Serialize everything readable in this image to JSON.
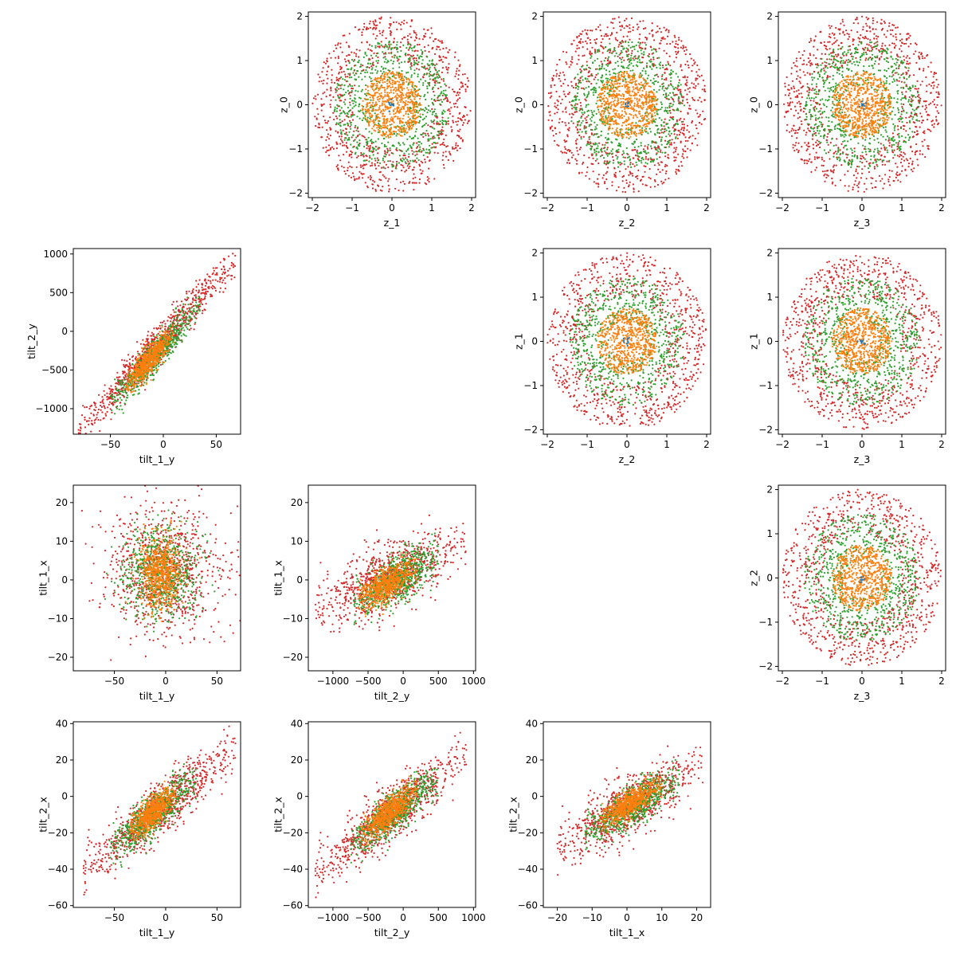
{
  "figure": {
    "series_colors": {
      "blue": "#1f77b4",
      "orange": "#ff7f0e",
      "green": "#2ca02c",
      "red": "#d62728"
    }
  },
  "chart_data": [
    {
      "type": "scatter",
      "grid": false,
      "row": 0,
      "col": 1,
      "xvar": "z_1",
      "yvar": "z_0",
      "xlabel": "z_1",
      "ylabel": "z_0",
      "xlim": [
        -2.1,
        2.1
      ],
      "ylim": [
        -2.1,
        2.1
      ],
      "xticks": [
        -2,
        -1,
        0,
        1,
        2
      ],
      "yticks": [
        -2,
        -1,
        0,
        1,
        2
      ],
      "series": [
        {
          "color": "red",
          "shape": "ring",
          "r_range": [
            1.0,
            2.0
          ],
          "approx_points": 900
        },
        {
          "color": "green",
          "shape": "ring",
          "r_range": [
            0.45,
            1.45
          ],
          "approx_points": 700
        },
        {
          "color": "orange",
          "shape": "disc",
          "r_range": [
            0.0,
            0.75
          ],
          "approx_points": 650
        },
        {
          "color": "blue",
          "shape": "cluster",
          "center": [
            0.0,
            0.0
          ],
          "approx_points": 10
        }
      ]
    },
    {
      "type": "scatter",
      "grid": false,
      "row": 0,
      "col": 2,
      "xvar": "z_2",
      "yvar": "z_0",
      "xlabel": "z_2",
      "ylabel": "z_0",
      "xlim": [
        -2.1,
        2.1
      ],
      "ylim": [
        -2.1,
        2.1
      ],
      "xticks": [
        -2,
        -1,
        0,
        1,
        2
      ],
      "yticks": [
        -2,
        -1,
        0,
        1,
        2
      ],
      "series": [
        {
          "color": "red",
          "shape": "ring",
          "r_range": [
            1.0,
            2.0
          ],
          "approx_points": 900
        },
        {
          "color": "green",
          "shape": "ring",
          "r_range": [
            0.45,
            1.45
          ],
          "approx_points": 700
        },
        {
          "color": "orange",
          "shape": "disc",
          "r_range": [
            0.0,
            0.75
          ],
          "approx_points": 650
        },
        {
          "color": "blue",
          "shape": "cluster",
          "center": [
            0.0,
            0.0
          ],
          "approx_points": 10
        }
      ]
    },
    {
      "type": "scatter",
      "grid": false,
      "row": 0,
      "col": 3,
      "xvar": "z_3",
      "yvar": "z_0",
      "xlabel": "z_3",
      "ylabel": "z_0",
      "xlim": [
        -2.1,
        2.1
      ],
      "ylim": [
        -2.1,
        2.1
      ],
      "xticks": [
        -2,
        -1,
        0,
        1,
        2
      ],
      "yticks": [
        -2,
        -1,
        0,
        1,
        2
      ],
      "series": [
        {
          "color": "red",
          "shape": "ring",
          "r_range": [
            1.0,
            2.0
          ],
          "approx_points": 900
        },
        {
          "color": "green",
          "shape": "ring",
          "r_range": [
            0.45,
            1.45
          ],
          "approx_points": 700
        },
        {
          "color": "orange",
          "shape": "disc",
          "r_range": [
            0.0,
            0.75
          ],
          "approx_points": 650
        },
        {
          "color": "blue",
          "shape": "cluster",
          "center": [
            0.0,
            0.0
          ],
          "approx_points": 10
        }
      ]
    },
    {
      "type": "scatter",
      "grid": false,
      "row": 1,
      "col": 0,
      "xvar": "tilt_1_y",
      "yvar": "tilt_2_y",
      "xlabel": "tilt_1_y",
      "ylabel": "tilt_2_y",
      "xlim": [
        -85,
        73
      ],
      "ylim": [
        -1330,
        1070
      ],
      "xticks": [
        -50,
        0,
        50
      ],
      "yticks": [
        -1000,
        -500,
        0,
        500,
        1000
      ],
      "series": [
        {
          "color": "red",
          "shape": "band",
          "x_range": [
            -80,
            68
          ],
          "slope": 15.0,
          "intercept": -100,
          "spread": 200,
          "approx_points": 900
        },
        {
          "color": "green",
          "shape": "band",
          "x_range": [
            -50,
            35
          ],
          "slope": 15.0,
          "intercept": -200,
          "spread": 180,
          "approx_points": 700
        },
        {
          "color": "orange",
          "shape": "band",
          "x_range": [
            -35,
            10
          ],
          "slope": 15.0,
          "intercept": -180,
          "spread": 150,
          "approx_points": 650
        }
      ]
    },
    {
      "type": "scatter",
      "grid": false,
      "row": 1,
      "col": 2,
      "xvar": "z_2",
      "yvar": "z_1",
      "xlabel": "z_2",
      "ylabel": "z_1",
      "xlim": [
        -2.1,
        2.1
      ],
      "ylim": [
        -2.1,
        2.1
      ],
      "xticks": [
        -2,
        -1,
        0,
        1,
        2
      ],
      "yticks": [
        -2,
        -1,
        0,
        1,
        2
      ],
      "series": [
        {
          "color": "red",
          "shape": "ring",
          "r_range": [
            1.0,
            2.0
          ],
          "approx_points": 900
        },
        {
          "color": "green",
          "shape": "ring",
          "r_range": [
            0.45,
            1.45
          ],
          "approx_points": 700
        },
        {
          "color": "orange",
          "shape": "disc",
          "r_range": [
            0.0,
            0.75
          ],
          "approx_points": 650
        },
        {
          "color": "blue",
          "shape": "cluster",
          "center": [
            0.0,
            0.0
          ],
          "approx_points": 10
        }
      ]
    },
    {
      "type": "scatter",
      "grid": false,
      "row": 1,
      "col": 3,
      "xvar": "z_3",
      "yvar": "z_1",
      "xlabel": "z_3",
      "ylabel": "z_1",
      "xlim": [
        -2.1,
        2.1
      ],
      "ylim": [
        -2.1,
        2.1
      ],
      "xticks": [
        -2,
        -1,
        0,
        1,
        2
      ],
      "yticks": [
        -2,
        -1,
        0,
        1,
        2
      ],
      "series": [
        {
          "color": "red",
          "shape": "ring",
          "r_range": [
            1.0,
            2.0
          ],
          "approx_points": 900
        },
        {
          "color": "green",
          "shape": "ring",
          "r_range": [
            0.45,
            1.45
          ],
          "approx_points": 700
        },
        {
          "color": "orange",
          "shape": "disc",
          "r_range": [
            0.0,
            0.75
          ],
          "approx_points": 650
        },
        {
          "color": "blue",
          "shape": "cluster",
          "center": [
            0.0,
            0.0
          ],
          "approx_points": 10
        }
      ]
    },
    {
      "type": "scatter",
      "grid": false,
      "row": 2,
      "col": 0,
      "xvar": "tilt_1_y",
      "yvar": "tilt_1_x",
      "xlabel": "tilt_1_y",
      "ylabel": "tilt_1_x",
      "xlim": [
        -90,
        73
      ],
      "ylim": [
        -23.5,
        24.5
      ],
      "xticks": [
        -50,
        0,
        50
      ],
      "yticks": [
        -20,
        -10,
        0,
        10,
        20
      ],
      "series": [
        {
          "color": "red",
          "shape": "blob",
          "center": [
            0,
            2
          ],
          "sd": [
            28,
            8
          ],
          "approx_points": 900
        },
        {
          "color": "green",
          "shape": "blob",
          "center": [
            -5,
            2
          ],
          "sd": [
            18,
            6
          ],
          "approx_points": 700
        },
        {
          "color": "orange",
          "shape": "blob",
          "center": [
            -5,
            2
          ],
          "sd": [
            10,
            4.5
          ],
          "approx_points": 650
        }
      ]
    },
    {
      "type": "scatter",
      "grid": false,
      "row": 2,
      "col": 1,
      "xvar": "tilt_2_y",
      "yvar": "tilt_1_x",
      "xlabel": "tilt_2_y",
      "ylabel": "tilt_1_x",
      "xlim": [
        -1350,
        1030
      ],
      "ylim": [
        -23.5,
        24.5
      ],
      "xticks": [
        -1000,
        -500,
        0,
        500,
        1000
      ],
      "yticks": [
        -20,
        -10,
        0,
        10,
        20
      ],
      "series": [
        {
          "color": "red",
          "shape": "band",
          "x_range": [
            -1250,
            900
          ],
          "slope": 0.008,
          "intercept": 2,
          "spread": 7,
          "approx_points": 900
        },
        {
          "color": "green",
          "shape": "band",
          "x_range": [
            -700,
            500
          ],
          "slope": 0.01,
          "intercept": 1,
          "spread": 5,
          "approx_points": 700
        },
        {
          "color": "orange",
          "shape": "band",
          "x_range": [
            -650,
            200
          ],
          "slope": 0.01,
          "intercept": 1,
          "spread": 3.5,
          "approx_points": 650
        }
      ]
    },
    {
      "type": "scatter",
      "grid": false,
      "row": 2,
      "col": 3,
      "xvar": "z_3",
      "yvar": "z_2",
      "xlabel": "z_3",
      "ylabel": "z_2",
      "xlim": [
        -2.1,
        2.1
      ],
      "ylim": [
        -2.1,
        2.1
      ],
      "xticks": [
        -2,
        -1,
        0,
        1,
        2
      ],
      "yticks": [
        -2,
        -1,
        0,
        1,
        2
      ],
      "series": [
        {
          "color": "red",
          "shape": "ring",
          "r_range": [
            1.0,
            2.0
          ],
          "approx_points": 900
        },
        {
          "color": "green",
          "shape": "ring",
          "r_range": [
            0.45,
            1.45
          ],
          "approx_points": 700
        },
        {
          "color": "orange",
          "shape": "disc",
          "r_range": [
            0.0,
            0.75
          ],
          "approx_points": 650
        },
        {
          "color": "blue",
          "shape": "cluster",
          "center": [
            0.0,
            0.0
          ],
          "approx_points": 10
        }
      ]
    },
    {
      "type": "scatter",
      "grid": false,
      "row": 3,
      "col": 0,
      "xvar": "tilt_1_y",
      "yvar": "tilt_2_x",
      "xlabel": "tilt_1_y",
      "ylabel": "tilt_2_x",
      "xlim": [
        -90,
        73
      ],
      "ylim": [
        -61,
        41
      ],
      "xticks": [
        -50,
        0,
        50
      ],
      "yticks": [
        -60,
        -40,
        -20,
        0,
        20,
        40
      ],
      "series": [
        {
          "color": "red",
          "shape": "band",
          "x_range": [
            -80,
            68
          ],
          "slope": 0.45,
          "intercept": -5,
          "spread": 12,
          "approx_points": 900
        },
        {
          "color": "green",
          "shape": "band",
          "x_range": [
            -55,
            30
          ],
          "slope": 0.45,
          "intercept": -5,
          "spread": 9,
          "approx_points": 700
        },
        {
          "color": "orange",
          "shape": "band",
          "x_range": [
            -35,
            10
          ],
          "slope": 0.45,
          "intercept": -3,
          "spread": 7,
          "approx_points": 650
        }
      ]
    },
    {
      "type": "scatter",
      "grid": false,
      "row": 3,
      "col": 1,
      "xvar": "tilt_2_y",
      "yvar": "tilt_2_x",
      "xlabel": "tilt_2_y",
      "ylabel": "tilt_2_x",
      "xlim": [
        -1350,
        1030
      ],
      "ylim": [
        -61,
        41
      ],
      "xticks": [
        -1000,
        -500,
        0,
        500,
        1000
      ],
      "yticks": [
        -60,
        -40,
        -20,
        0,
        20,
        40
      ],
      "series": [
        {
          "color": "red",
          "shape": "band",
          "x_range": [
            -1250,
            900
          ],
          "slope": 0.03,
          "intercept": -5,
          "spread": 12,
          "approx_points": 900
        },
        {
          "color": "green",
          "shape": "band",
          "x_range": [
            -750,
            500
          ],
          "slope": 0.03,
          "intercept": -5,
          "spread": 9,
          "approx_points": 700
        },
        {
          "color": "orange",
          "shape": "band",
          "x_range": [
            -600,
            200
          ],
          "slope": 0.03,
          "intercept": -3,
          "spread": 7,
          "approx_points": 650
        }
      ]
    },
    {
      "type": "scatter",
      "grid": false,
      "row": 3,
      "col": 2,
      "xvar": "tilt_1_x",
      "yvar": "tilt_2_x",
      "xlabel": "tilt_1_x",
      "ylabel": "tilt_2_x",
      "xlim": [
        -24,
        24
      ],
      "ylim": [
        -61,
        41
      ],
      "xticks": [
        -20,
        -10,
        0,
        10,
        20
      ],
      "yticks": [
        -60,
        -40,
        -20,
        0,
        20,
        40
      ],
      "series": [
        {
          "color": "red",
          "shape": "band",
          "x_range": [
            -20,
            22
          ],
          "slope": 1.1,
          "intercept": -7,
          "spread": 13,
          "approx_points": 900
        },
        {
          "color": "green",
          "shape": "band",
          "x_range": [
            -12,
            15
          ],
          "slope": 1.1,
          "intercept": -7,
          "spread": 9,
          "approx_points": 700
        },
        {
          "color": "orange",
          "shape": "band",
          "x_range": [
            -8,
            10
          ],
          "slope": 1.1,
          "intercept": -5,
          "spread": 6,
          "approx_points": 650
        }
      ]
    }
  ]
}
